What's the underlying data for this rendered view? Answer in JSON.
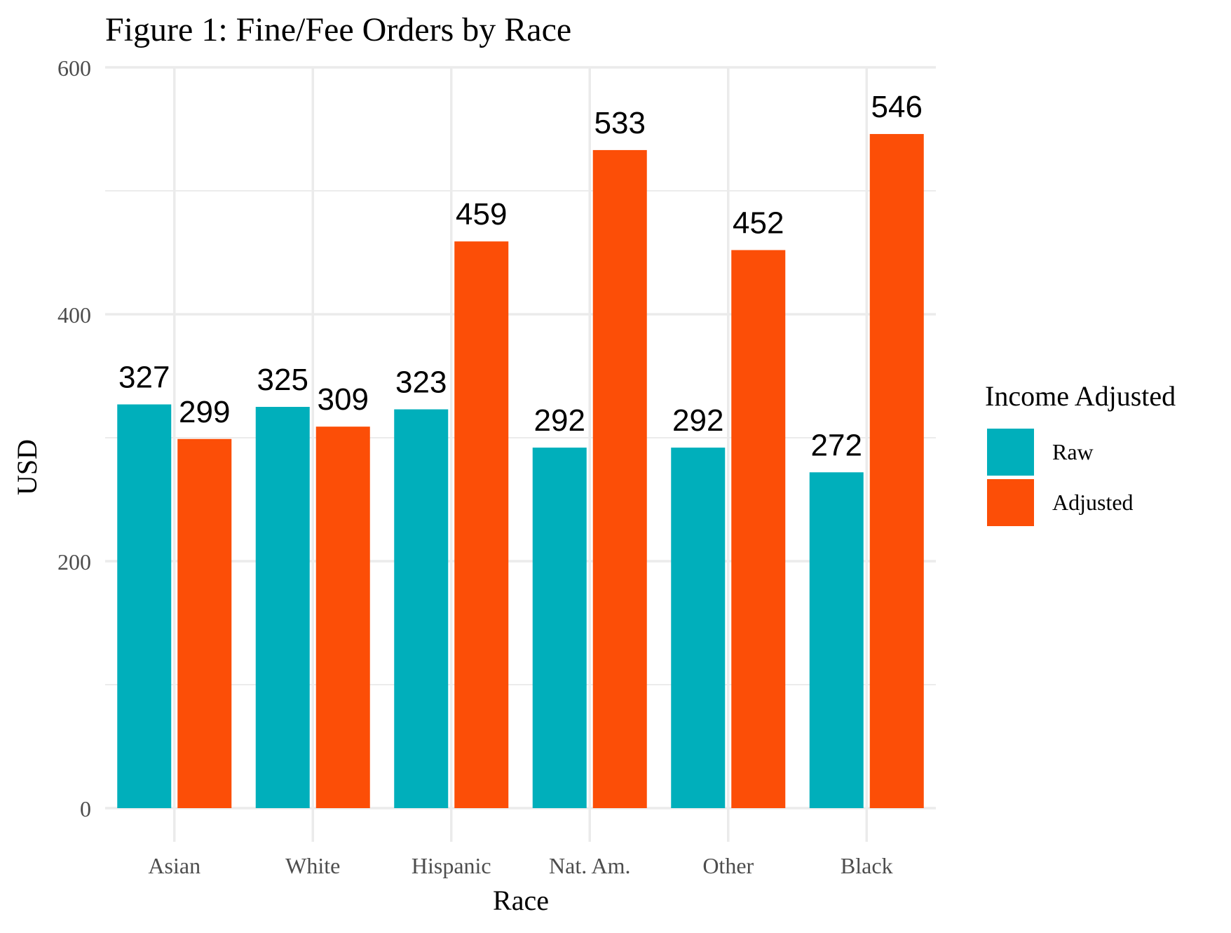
{
  "chart_data": {
    "type": "bar",
    "title": "Figure 1: Fine/Fee Orders by Race",
    "xlabel": "Race",
    "ylabel": "USD",
    "categories": [
      "Asian",
      "White",
      "Hispanic",
      "Nat. Am.",
      "Other",
      "Black"
    ],
    "series": [
      {
        "name": "Raw",
        "color": "#00AFBB",
        "values": [
          327,
          325,
          323,
          292,
          292,
          272
        ]
      },
      {
        "name": "Adjusted",
        "color": "#FC4E07",
        "values": [
          299,
          309,
          459,
          533,
          452,
          546
        ]
      }
    ],
    "ylim": [
      0,
      600
    ],
    "yticks": [
      0,
      200,
      400,
      600
    ],
    "grid": true,
    "legend": {
      "title": "Income Adjusted",
      "position": "right"
    }
  }
}
